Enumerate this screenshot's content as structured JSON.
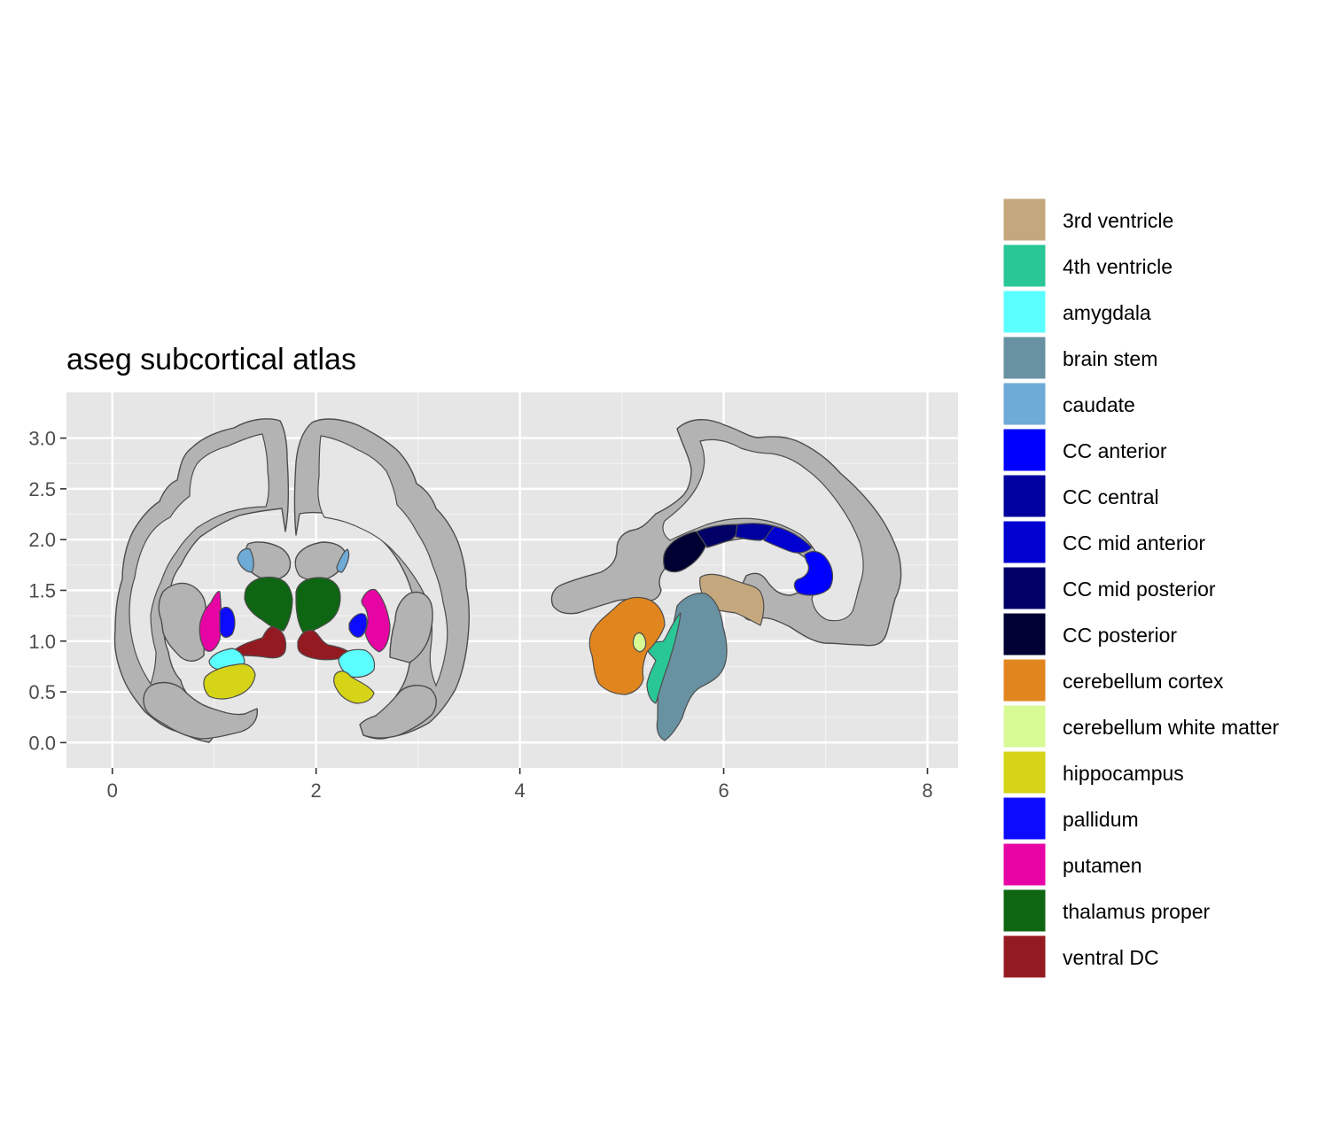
{
  "chart_data": {
    "type": "other",
    "title": "aseg subcortical atlas",
    "xlabel": "",
    "ylabel": "",
    "xlim": [
      -0.45,
      8.3
    ],
    "ylim": [
      -0.25,
      3.45
    ],
    "x_ticks": [
      {
        "value": 0,
        "label": "0"
      },
      {
        "value": 2,
        "label": "2"
      },
      {
        "value": 4,
        "label": "4"
      },
      {
        "value": 6,
        "label": "6"
      },
      {
        "value": 8,
        "label": "8"
      }
    ],
    "y_ticks": [
      {
        "value": 0.0,
        "label": "0.0"
      },
      {
        "value": 0.5,
        "label": "0.5"
      },
      {
        "value": 1.0,
        "label": "1.0"
      },
      {
        "value": 1.5,
        "label": "1.5"
      },
      {
        "value": 2.0,
        "label": "2.0"
      },
      {
        "value": 2.5,
        "label": "2.5"
      },
      {
        "value": 3.0,
        "label": "3.0"
      }
    ],
    "grid": true,
    "panel_background": "#e6e6e6",
    "outline_color": "#b3b3b3",
    "legend_position": "right",
    "legend": [
      {
        "label": "3rd ventricle",
        "color": "#c4a77d"
      },
      {
        "label": "4th ventricle",
        "color": "#2ac796"
      },
      {
        "label": "amygdala",
        "color": "#5cffff"
      },
      {
        "label": "brain stem",
        "color": "#6891a2"
      },
      {
        "label": "caudate",
        "color": "#6eabd6"
      },
      {
        "label": "CC anterior",
        "color": "#0000ff"
      },
      {
        "label": "CC central",
        "color": "#00009e"
      },
      {
        "label": "CC mid anterior",
        "color": "#0000d1"
      },
      {
        "label": "CC mid posterior",
        "color": "#000066"
      },
      {
        "label": "CC posterior",
        "color": "#000032"
      },
      {
        "label": "cerebellum cortex",
        "color": "#e1861e"
      },
      {
        "label": "cerebellum white matter",
        "color": "#d8fa94"
      },
      {
        "label": "hippocampus",
        "color": "#d6d417"
      },
      {
        "label": "pallidum",
        "color": "#0c0bff"
      },
      {
        "label": "putamen",
        "color": "#e604a4"
      },
      {
        "label": "thalamus proper",
        "color": "#0e6612"
      },
      {
        "label": "ventral DC",
        "color": "#941a22"
      }
    ]
  }
}
